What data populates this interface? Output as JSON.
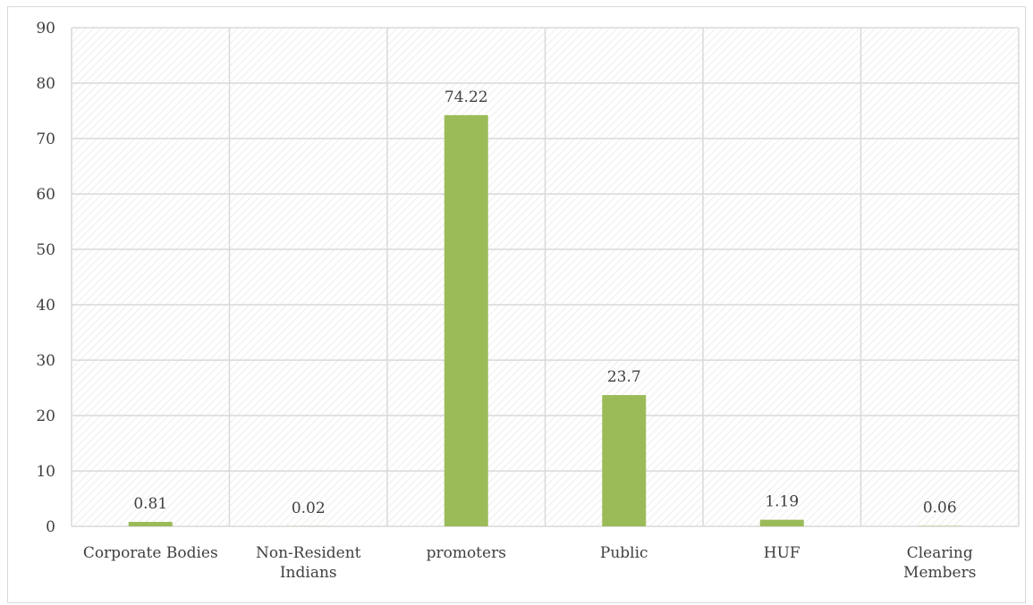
{
  "chart_data": {
    "type": "bar",
    "categories": [
      [
        "Corporate Bodies"
      ],
      [
        "Non-Resident",
        "Indians"
      ],
      [
        "promoters"
      ],
      [
        "Public"
      ],
      [
        "HUF"
      ],
      [
        "Clearing",
        "Members"
      ]
    ],
    "values": [
      0.81,
      0.02,
      74.22,
      23.7,
      1.19,
      0.06
    ],
    "data_labels": [
      "0.81",
      "0.02",
      "74.22",
      "23.7",
      "1.19",
      "0.06"
    ],
    "ylim": [
      0,
      90
    ],
    "yticks": [
      0,
      10,
      20,
      30,
      40,
      50,
      60,
      70,
      80,
      90
    ],
    "grid": true,
    "plot_background": "hatched",
    "title": "",
    "xlabel": "",
    "ylabel": "",
    "colors": {
      "bar": "#9BBB59",
      "grid": "#d9d9d9",
      "hatch": "#e2e2e2",
      "text": "#404040"
    }
  }
}
